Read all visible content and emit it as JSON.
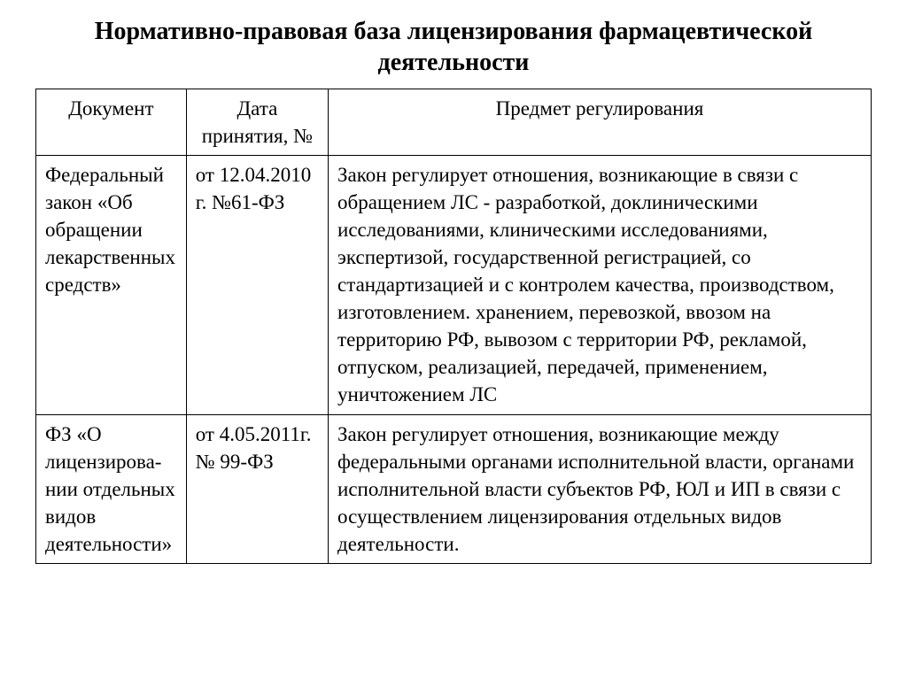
{
  "title": "Нормативно-правовая база лицензирования фармацевтической деятельности",
  "table": {
    "columns": [
      "Документ",
      "Дата принятия, №",
      "Предмет регулирования"
    ],
    "col_widths_pct": [
      18,
      17,
      65
    ],
    "border_color": "#000000",
    "background_color": "#ffffff",
    "font_family": "Times New Roman",
    "header_fontsize": 23,
    "cell_fontsize": 23,
    "rows": [
      {
        "document": "Федеральный закон «Об обращении лекарственных средств»",
        "date": "от 12.04.2010 г. №61-ФЗ",
        "subject": "Закон регулирует отношения, возникающие в связи с обращением ЛС - разработкой, доклиническими исследованиями, клиническими исследованиями, экспертизой, государственной регистрацией, со стандартизацией и с контролем качества, производством, изготовлением. хранением, перевозкой, ввозом на территорию РФ, вывозом с территории РФ, рекламой, отпуском, реализацией, передачей, применением, уничтожением ЛС"
      },
      {
        "document": "ФЗ «О лицензирова-нии отдельных видов деятельности»",
        "date": "от 4.05.2011г. № 99-ФЗ",
        "subject": "Закон регулирует отношения, возникающие между федеральными органами исполнительной власти, органами исполнительной власти субъектов РФ, ЮЛ и ИП в связи с осуществлением лицензирования отдельных видов деятельности."
      }
    ]
  }
}
